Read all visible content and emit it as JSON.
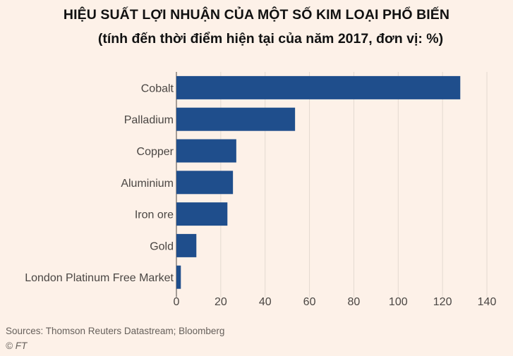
{
  "title": "HIỆU SUẤT LỢI NHUẬN CỦA MỘT SỐ KIM LOẠI PHỔ BIẾN",
  "subtitle": "(tính đến thời điểm hiện tại của năm 2017, đơn vị: %)",
  "source": "Sources: Thomson Reuters Datastream; Bloomberg",
  "credit": "© FT",
  "colors": {
    "bar": "#1f4e8c",
    "background": "#fdf1e8",
    "grid": "#e3d9d0"
  },
  "chart_data": {
    "type": "bar",
    "orientation": "horizontal",
    "categories": [
      "Cobalt",
      "Palladium",
      "Copper",
      "Aluminium",
      "Iron ore",
      "Gold",
      "London Platinum Free Market"
    ],
    "values": [
      128,
      53.5,
      27,
      25.5,
      23,
      9,
      2
    ],
    "xlim": [
      0,
      140
    ],
    "xticks": [
      0,
      20,
      40,
      60,
      80,
      100,
      120,
      140
    ],
    "grid": true
  }
}
